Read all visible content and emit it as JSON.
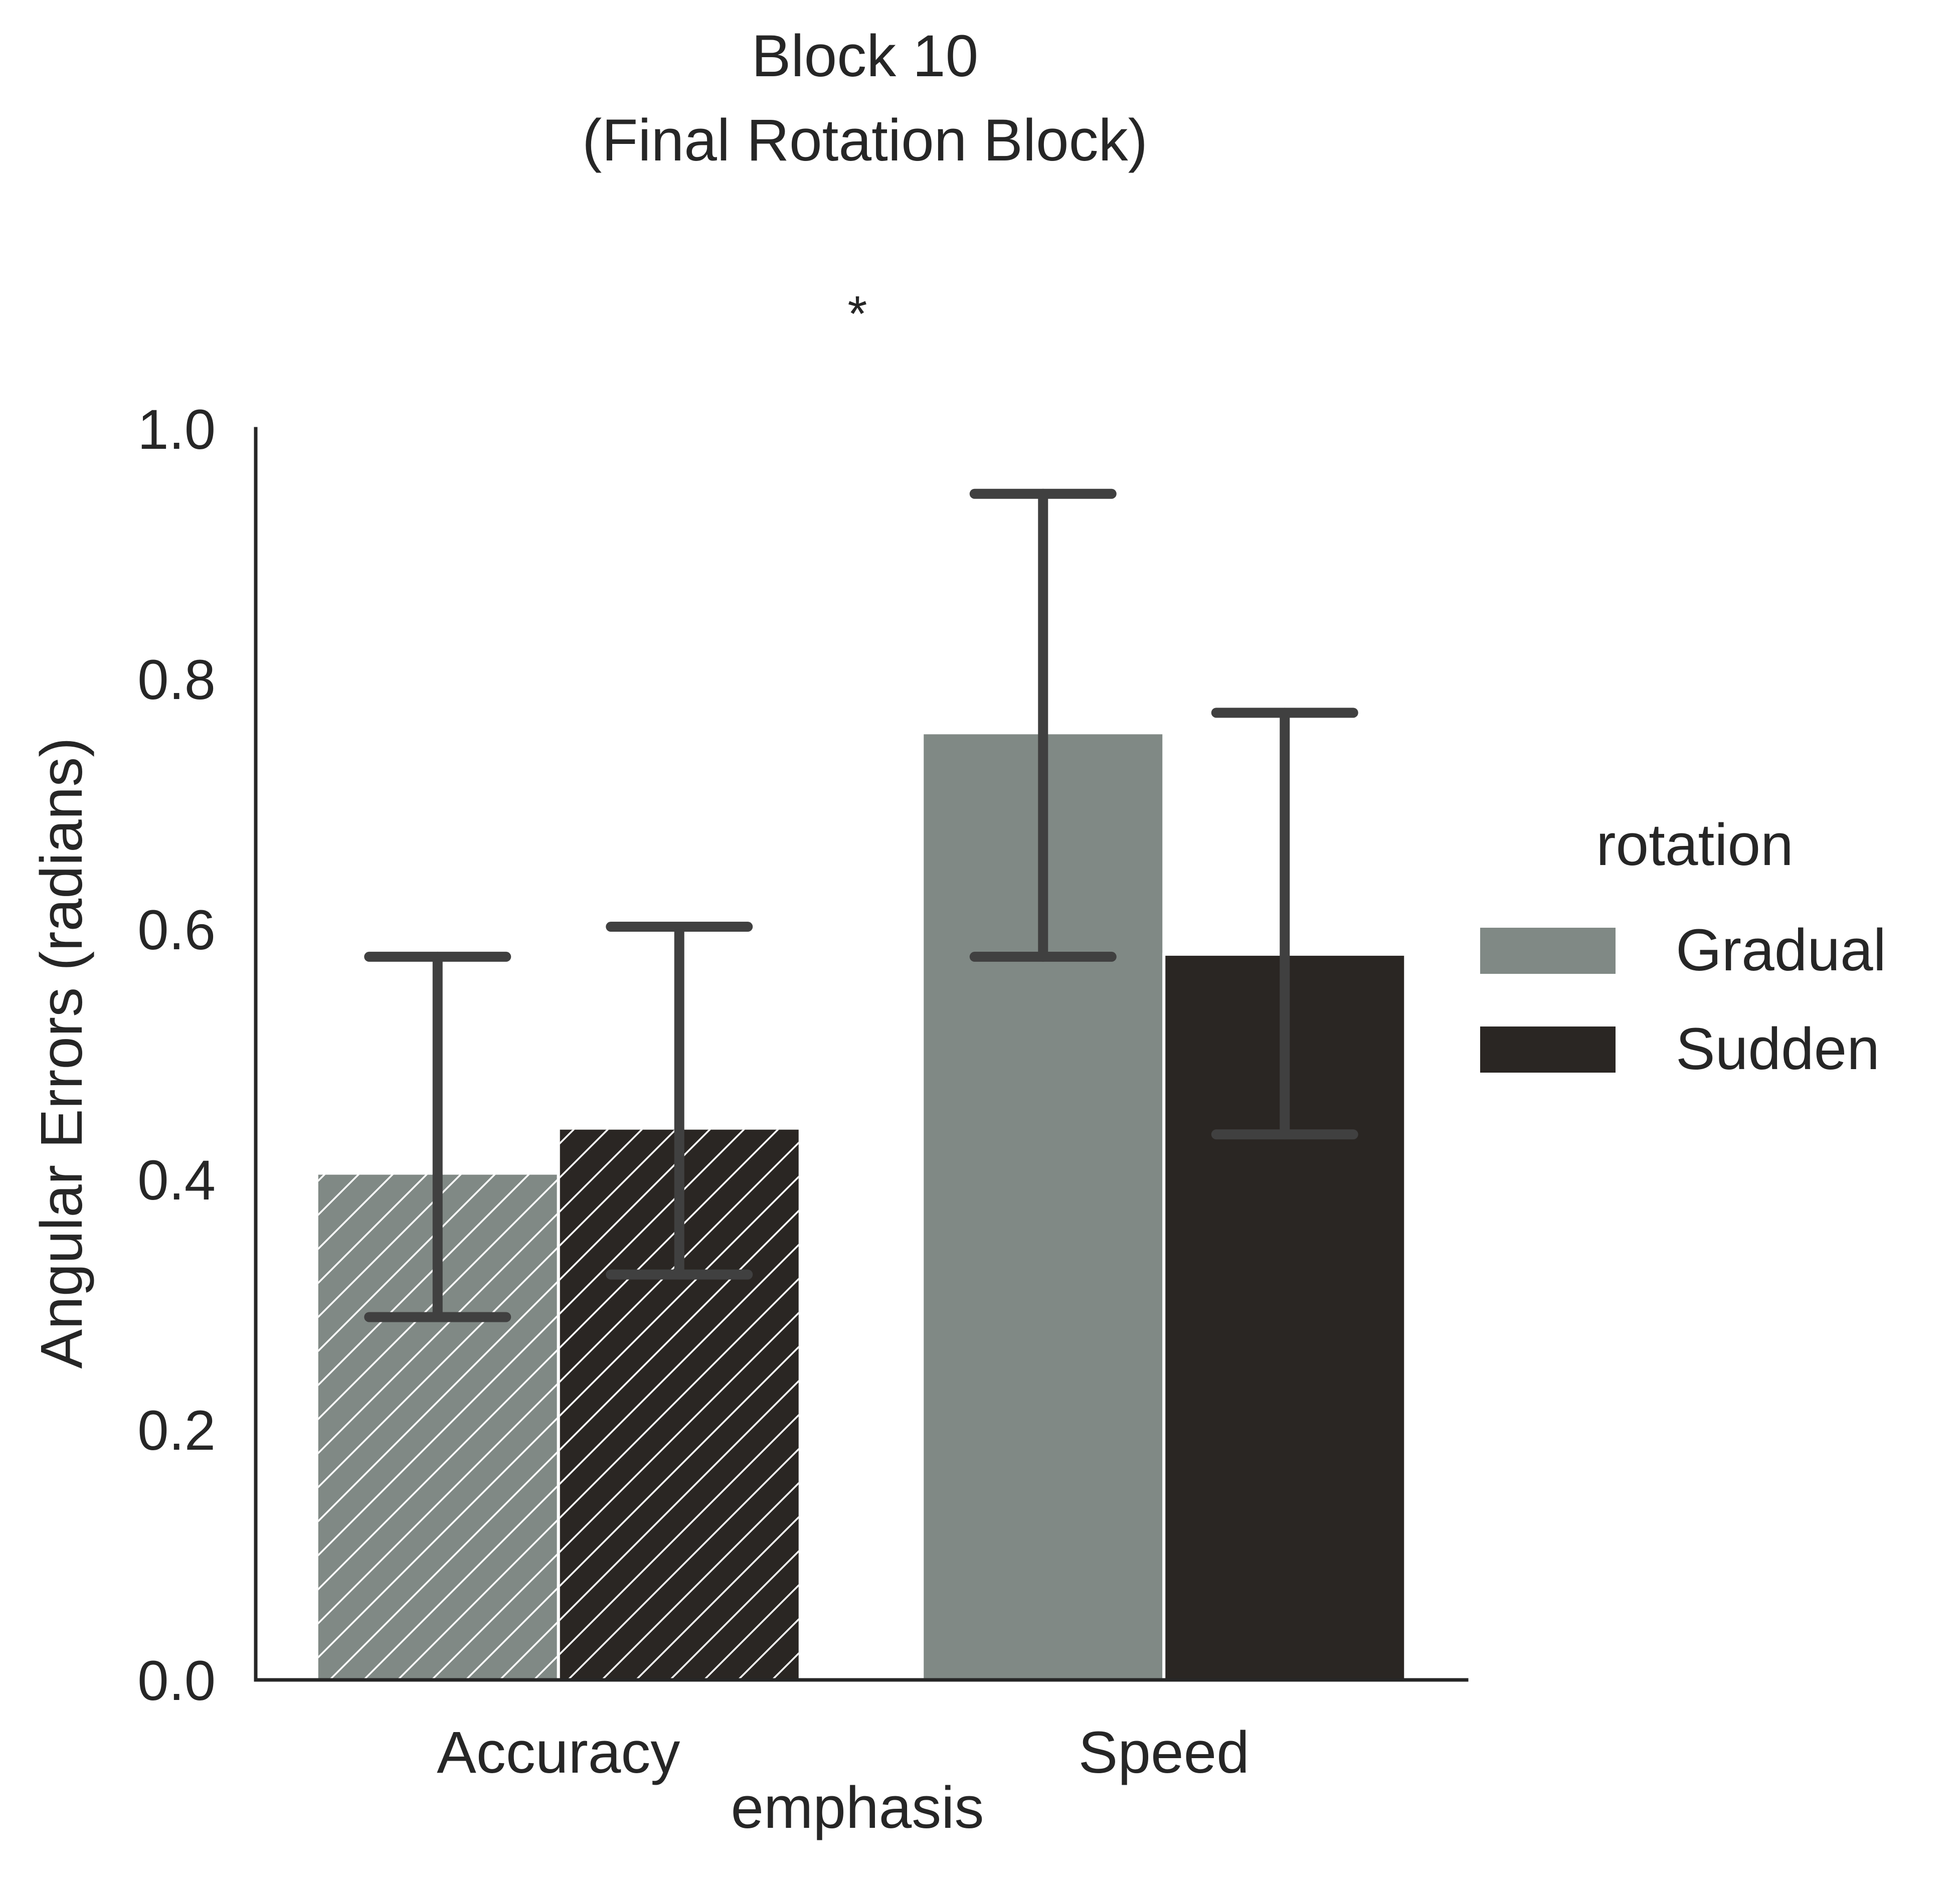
{
  "chart_data": {
    "type": "bar",
    "title": "Block 10\n(Final Rotation Block)",
    "annotation": "*",
    "xlabel": "emphasis",
    "ylabel": "Angular Errors (radians)",
    "ylim": [
      0,
      1.0
    ],
    "yticks": [
      0.0,
      0.2,
      0.4,
      0.6,
      0.8,
      1.0
    ],
    "ytick_labels": [
      "0.0",
      "0.2",
      "0.4",
      "0.6",
      "0.8",
      "1.0"
    ],
    "categories": [
      "Accuracy",
      "Speed"
    ],
    "hatched_categories": [
      "Accuracy"
    ],
    "legend": {
      "title": "rotation",
      "location": "center-right-outside"
    },
    "series": [
      {
        "name": "Gradual",
        "color": "#808985",
        "values": [
          0.405,
          0.757
        ],
        "ci_low": [
          0.29,
          0.578
        ],
        "ci_high": [
          0.578,
          0.948
        ]
      },
      {
        "name": "Sudden",
        "color": "#2a2623",
        "values": [
          0.441,
          0.58
        ],
        "ci_low": [
          0.324,
          0.436
        ],
        "ci_high": [
          0.602,
          0.773
        ]
      }
    ],
    "errorbar_color": "#404040",
    "spine_color": "#262626"
  }
}
